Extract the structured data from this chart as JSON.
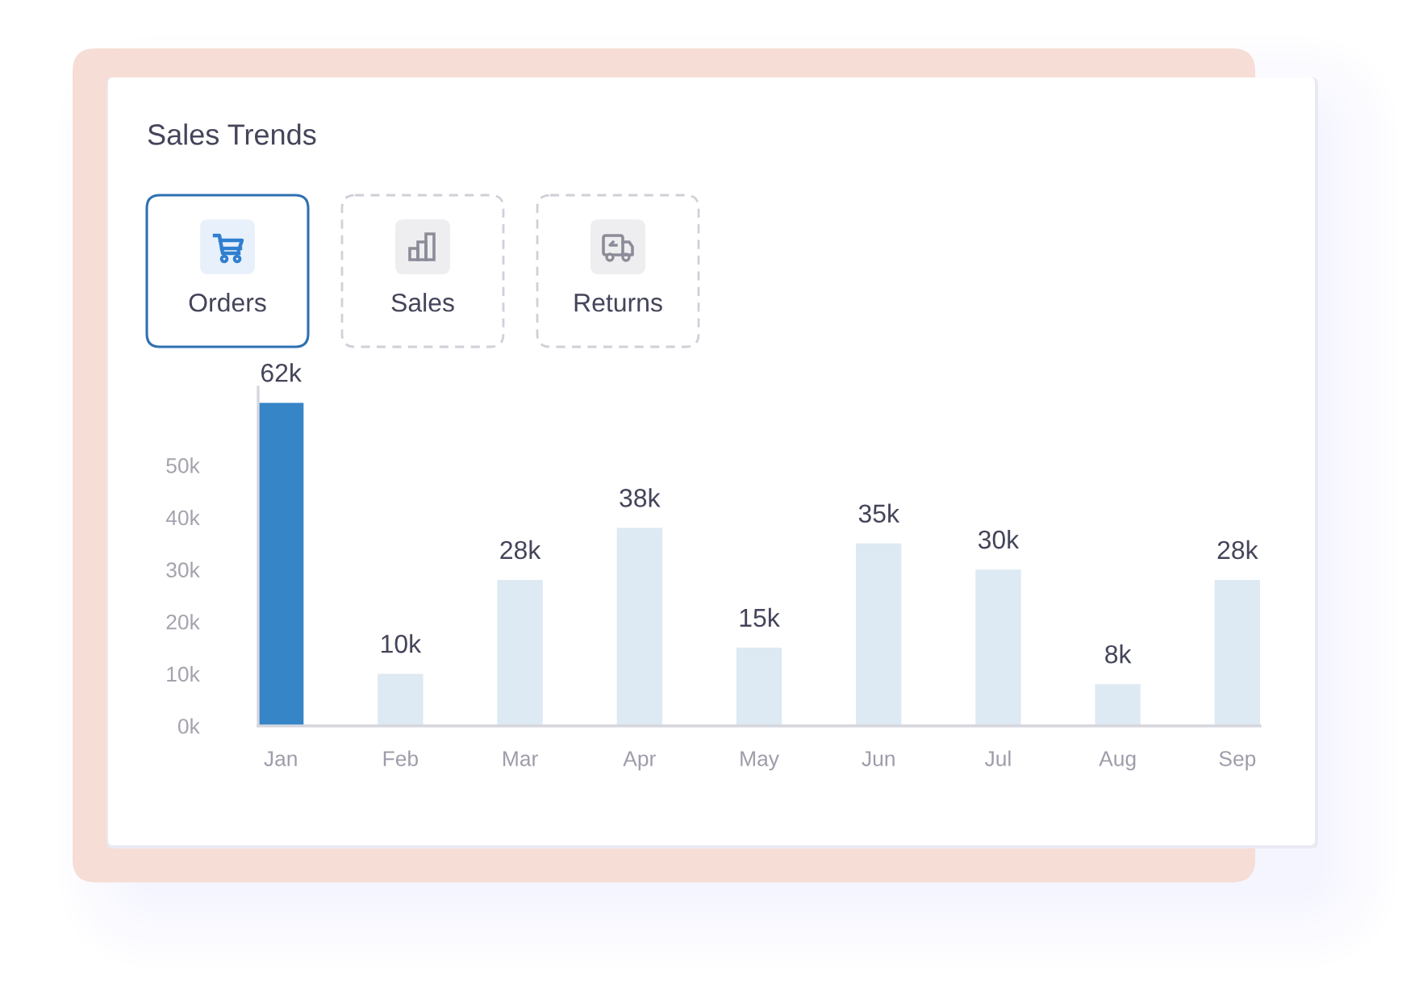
{
  "chart_data": {
    "type": "bar",
    "title": "Sales Trends",
    "annotations": [
      "Orders",
      "Sales",
      "Returns"
    ],
    "categories": [
      "Jan",
      "Feb",
      "Mar",
      "Apr",
      "May",
      "Jun",
      "Jul",
      "Aug",
      "Sep"
    ],
    "values": [
      62,
      10,
      28,
      38,
      15,
      35,
      30,
      8,
      28
    ],
    "colors": [
      "#3585c7",
      "#dde9f3",
      "#dde9f3",
      "#dde9f3",
      "#dde9f3",
      "#dde9f3",
      "#dde9f3",
      "#dde9f3",
      "#dde9f3"
    ],
    "value_labels": [
      "62k",
      "10k",
      "28k",
      "38k",
      "15k",
      "35k",
      "30k",
      "8k",
      "28k"
    ],
    "ylim": [
      0,
      65
    ],
    "yticks": [
      {
        "value": 0,
        "label": "0k"
      },
      {
        "value": 10,
        "label": "10k"
      },
      {
        "value": 20,
        "label": "20k"
      },
      {
        "value": 30,
        "label": "30k"
      },
      {
        "value": 40,
        "label": "40k"
      },
      {
        "value": 50,
        "label": "50k"
      }
    ]
  }
}
